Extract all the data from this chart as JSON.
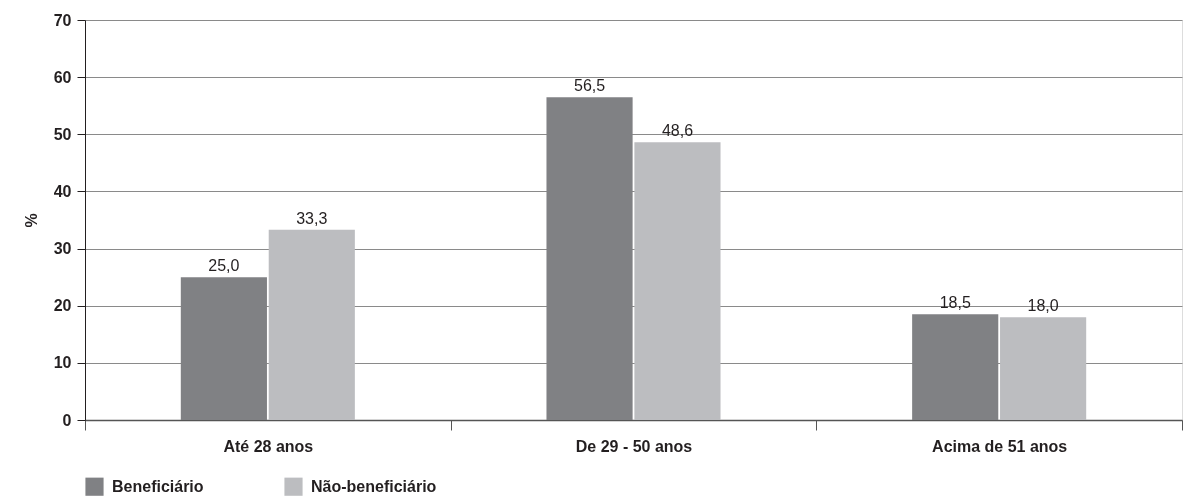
{
  "chart_data": {
    "type": "bar",
    "ylabel": "%",
    "categories": [
      "Até 28 anos",
      "De 29 - 50 anos",
      "Acima de 51 anos"
    ],
    "series": [
      {
        "name": "Beneficiário",
        "color": "#808184",
        "values": [
          25.0,
          56.5,
          18.5
        ],
        "value_labels": [
          "25,0",
          "56,5",
          "18,5"
        ]
      },
      {
        "name": "Não-beneficiário",
        "color": "#bcbdc0",
        "values": [
          33.3,
          48.6,
          18.0
        ],
        "value_labels": [
          "33,3",
          "48,6",
          "18,0"
        ]
      }
    ],
    "ylim": [
      0,
      70
    ],
    "yticks": [
      0,
      10,
      20,
      30,
      40,
      50,
      60,
      70
    ],
    "grid": "y",
    "legend": "bottom left"
  }
}
